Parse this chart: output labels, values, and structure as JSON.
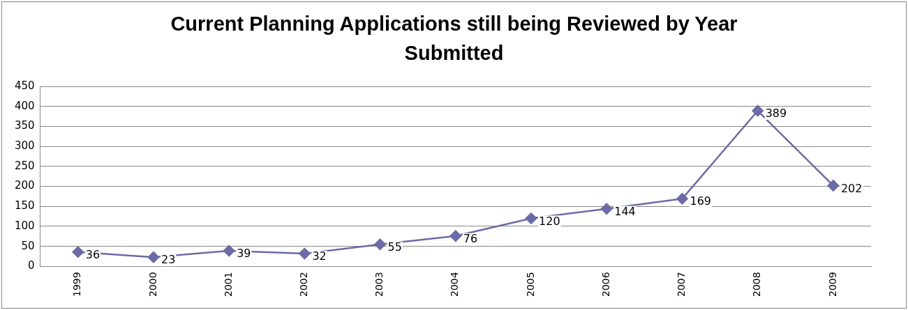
{
  "chart_data": {
    "type": "line",
    "title": "Current Planning Applications still being Reviewed by Year Submitted",
    "categories": [
      "1999",
      "2000",
      "2001",
      "2002",
      "2003",
      "2004",
      "2005",
      "2006",
      "2007",
      "2008",
      "2009"
    ],
    "series": [
      {
        "color": "#6b6ba6",
        "values": [
          36,
          23,
          39,
          32,
          55,
          76,
          120,
          144,
          169,
          389,
          202
        ]
      }
    ],
    "ylim": [
      0,
      450
    ],
    "yticks": [
      0,
      50,
      100,
      150,
      200,
      250,
      300,
      350,
      400,
      450
    ],
    "grid": "y",
    "legend": false,
    "marker": "diamond",
    "line_style": "solid",
    "data_labels": true
  }
}
